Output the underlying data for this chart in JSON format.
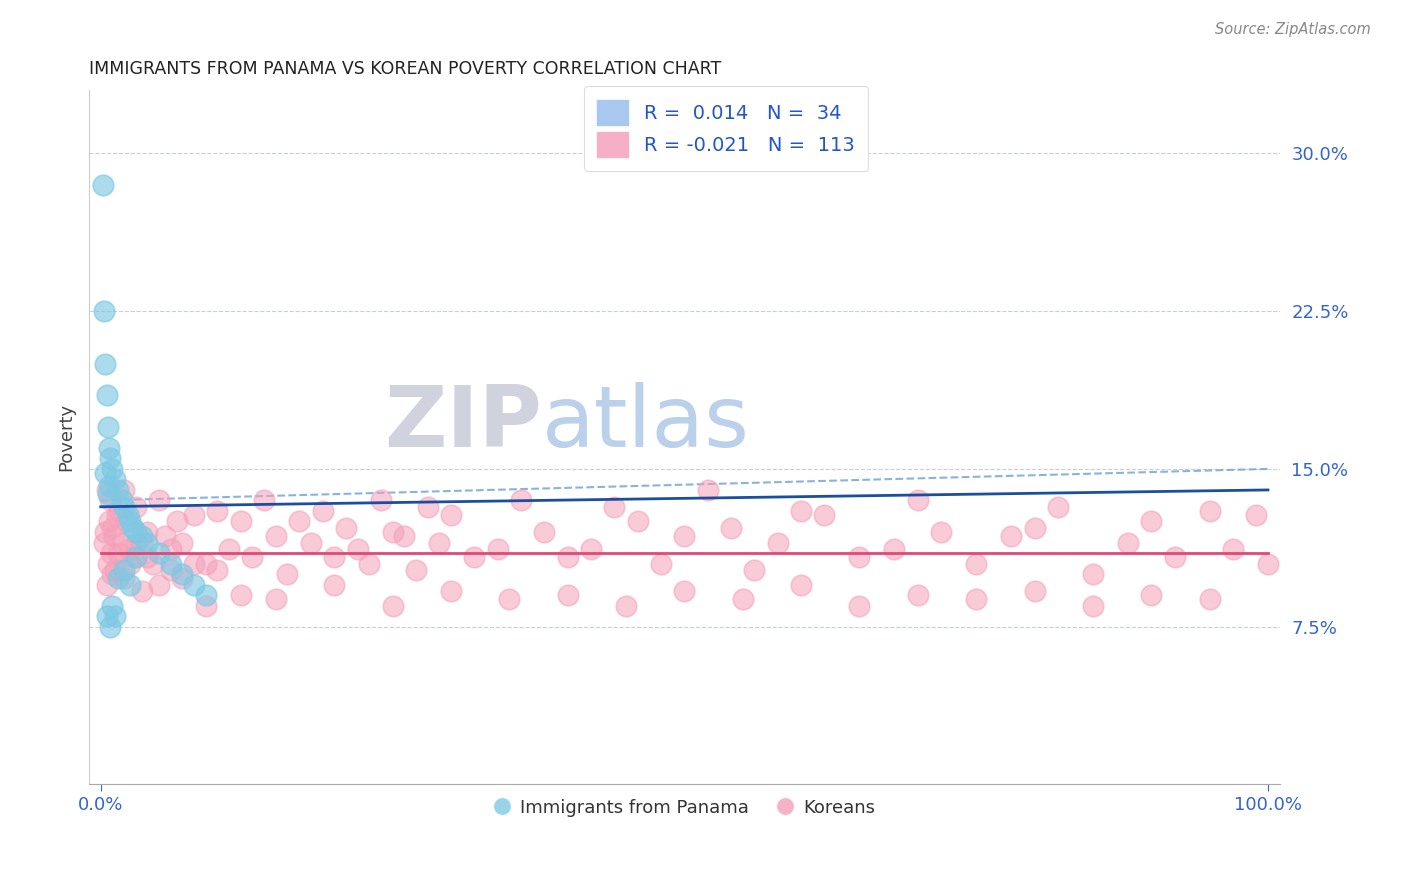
{
  "title": "IMMIGRANTS FROM PANAMA VS KOREAN POVERTY CORRELATION CHART",
  "source": "Source: ZipAtlas.com",
  "ylabel": "Poverty",
  "r_panama": 0.014,
  "n_panama": 34,
  "r_korean": -0.021,
  "n_korean": 113,
  "color_panama": "#7EC8E3",
  "color_korean": "#F5A0B8",
  "color_trendline_panama": "#1a4fa0",
  "color_trendline_korean": "#e04878",
  "color_dashed_grid": "#c8cdd8",
  "color_dashed_blue": "#7aacdc",
  "watermark_zip_color": "#d0d4dc",
  "watermark_atlas_color": "#b8cce8",
  "legend_text_color": "#2255cc",
  "title_color": "#222222",
  "source_color": "#888888",
  "axis_tick_color": "#3366cc",
  "series_labels": [
    "Immigrants from Panama",
    "Koreans"
  ],
  "ytick_vals": [
    7.5,
    15.0,
    22.5,
    30.0
  ],
  "ytick_labels": [
    "7.5%",
    "15.0%",
    "22.5%",
    "30.0%"
  ],
  "xlim": [
    -1,
    101
  ],
  "ylim": [
    0,
    33
  ],
  "blue_trend_y0": 13.2,
  "blue_trend_y1": 14.0,
  "pink_trend_y0": 11.0,
  "pink_trend_y1": 11.0,
  "dashed_blue_y0": 13.5,
  "dashed_blue_y1": 15.0,
  "panama_x": [
    0.2,
    0.3,
    0.4,
    0.5,
    0.6,
    0.7,
    0.8,
    1.0,
    1.2,
    1.5,
    1.8,
    2.0,
    2.3,
    2.5,
    2.8,
    3.0,
    3.5,
    4.0,
    5.0,
    6.0,
    7.0,
    8.0,
    9.0,
    1.0,
    0.5,
    0.6,
    0.7,
    0.4,
    1.5,
    2.0,
    2.5,
    3.0,
    1.2,
    0.8
  ],
  "panama_y": [
    28.5,
    22.5,
    20.0,
    18.5,
    17.0,
    16.0,
    15.5,
    15.0,
    14.5,
    14.0,
    13.5,
    13.2,
    12.8,
    12.5,
    12.2,
    12.0,
    11.8,
    11.5,
    11.0,
    10.5,
    10.0,
    9.5,
    9.0,
    8.5,
    8.0,
    13.8,
    14.2,
    14.8,
    9.8,
    10.2,
    9.5,
    10.8,
    8.0,
    7.5
  ],
  "korean_x": [
    0.3,
    0.4,
    0.5,
    0.6,
    0.7,
    0.8,
    0.9,
    1.0,
    1.1,
    1.2,
    1.4,
    1.6,
    1.8,
    2.0,
    2.2,
    2.5,
    2.8,
    3.0,
    3.5,
    4.0,
    4.5,
    5.0,
    5.5,
    6.0,
    6.5,
    7.0,
    8.0,
    9.0,
    10.0,
    11.0,
    12.0,
    13.0,
    14.0,
    15.0,
    16.0,
    17.0,
    18.0,
    19.0,
    20.0,
    21.0,
    22.0,
    23.0,
    24.0,
    25.0,
    26.0,
    27.0,
    28.0,
    29.0,
    30.0,
    32.0,
    34.0,
    36.0,
    38.0,
    40.0,
    42.0,
    44.0,
    46.0,
    48.0,
    50.0,
    52.0,
    54.0,
    56.0,
    58.0,
    60.0,
    62.0,
    65.0,
    68.0,
    70.0,
    72.0,
    75.0,
    78.0,
    80.0,
    82.0,
    85.0,
    88.0,
    90.0,
    92.0,
    95.0,
    97.0,
    99.0,
    0.5,
    1.0,
    1.5,
    2.0,
    2.5,
    3.0,
    3.5,
    4.0,
    5.0,
    6.0,
    7.0,
    8.0,
    9.0,
    10.0,
    12.0,
    15.0,
    20.0,
    25.0,
    30.0,
    35.0,
    40.0,
    45.0,
    50.0,
    55.0,
    60.0,
    65.0,
    70.0,
    75.0,
    80.0,
    85.0,
    90.0,
    95.0,
    100.0
  ],
  "korean_y": [
    11.5,
    12.0,
    14.0,
    10.5,
    12.5,
    13.5,
    11.0,
    12.2,
    11.8,
    10.2,
    12.8,
    13.0,
    11.5,
    14.0,
    12.5,
    11.2,
    10.8,
    13.2,
    11.5,
    12.0,
    10.5,
    13.5,
    11.8,
    10.2,
    12.5,
    11.5,
    12.8,
    10.5,
    13.0,
    11.2,
    12.5,
    10.8,
    13.5,
    11.8,
    10.0,
    12.5,
    11.5,
    13.0,
    10.8,
    12.2,
    11.2,
    10.5,
    13.5,
    12.0,
    11.8,
    10.2,
    13.2,
    11.5,
    12.8,
    10.8,
    11.2,
    13.5,
    12.0,
    10.8,
    11.2,
    13.2,
    12.5,
    10.5,
    11.8,
    14.0,
    12.2,
    10.2,
    11.5,
    13.0,
    12.8,
    10.8,
    11.2,
    13.5,
    12.0,
    10.5,
    11.8,
    12.2,
    13.2,
    10.0,
    11.5,
    12.5,
    10.8,
    13.0,
    11.2,
    12.8,
    9.5,
    10.0,
    11.0,
    9.8,
    10.5,
    11.5,
    9.2,
    10.8,
    9.5,
    11.2,
    9.8,
    10.5,
    8.5,
    10.2,
    9.0,
    8.8,
    9.5,
    8.5,
    9.2,
    8.8,
    9.0,
    8.5,
    9.2,
    8.8,
    9.5,
    8.5,
    9.0,
    8.8,
    9.2,
    8.5,
    9.0,
    8.8,
    10.5
  ]
}
